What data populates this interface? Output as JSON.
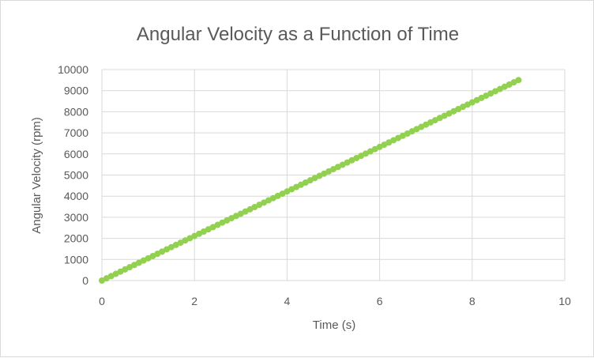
{
  "chart_data": {
    "type": "scatter",
    "title": "Angular Velocity as a Function of Time",
    "xlabel": "Time (s)",
    "ylabel": "Angular Velocity (rpm)",
    "xlim": [
      0,
      10
    ],
    "ylim": [
      0,
      10000
    ],
    "x_ticks": [
      "0",
      "2",
      "4",
      "6",
      "8",
      "10"
    ],
    "y_ticks": [
      "0",
      "1000",
      "2000",
      "3000",
      "4000",
      "5000",
      "6000",
      "7000",
      "8000",
      "9000",
      "10000"
    ],
    "grid": true,
    "legend": "none",
    "marker_color": "#92d050",
    "series": [
      {
        "x_start": 0,
        "x_end": 9,
        "x_step": 0.1,
        "y_start": 0,
        "y_end": 9500
      }
    ]
  }
}
